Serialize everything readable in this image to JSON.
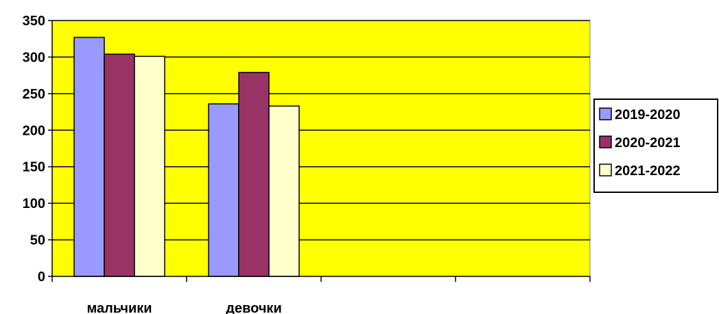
{
  "chart_data": {
    "type": "bar",
    "categories": [
      "мальчики",
      "девочки",
      "",
      ""
    ],
    "series": [
      {
        "name": "2019-2020",
        "values": [
          327,
          236,
          null,
          null
        ],
        "color": "#9999ff"
      },
      {
        "name": "2020-2021",
        "values": [
          304,
          279,
          null,
          null
        ],
        "color": "#993366"
      },
      {
        "name": "2021-2022",
        "values": [
          301,
          233,
          null,
          null
        ],
        "color": "#ffffcc"
      }
    ],
    "y_ticks": [
      "0",
      "50",
      "100",
      "150",
      "200",
      "250",
      "300",
      "350"
    ],
    "ylim": [
      0,
      350
    ],
    "title": "",
    "xlabel": "",
    "ylabel": "",
    "grid": true,
    "legend_position": "right",
    "plot_background": "#ffff00"
  }
}
